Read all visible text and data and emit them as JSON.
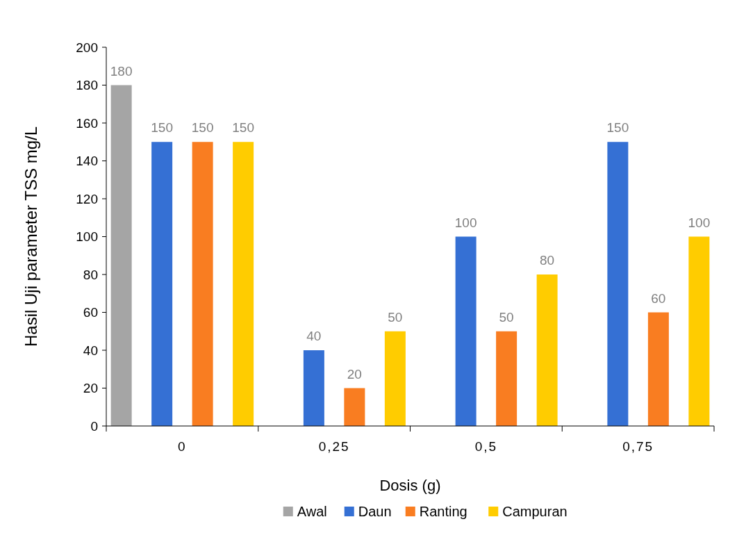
{
  "chart_data": {
    "type": "bar",
    "xlabel": "Dosis (g)",
    "ylabel": "Hasil Uji parameter TSS mg/L",
    "categories": [
      "0",
      "0,25",
      "0,5",
      "0,75"
    ],
    "series": [
      {
        "name": "Awal",
        "color": "#a5a5a5",
        "values": [
          180,
          null,
          null,
          null
        ]
      },
      {
        "name": "Daun",
        "color": "#3570d4",
        "values": [
          150,
          40,
          100,
          150
        ]
      },
      {
        "name": "Ranting",
        "color": "#f97d21",
        "values": [
          150,
          20,
          50,
          60
        ]
      },
      {
        "name": "Campuran",
        "color": "#ffcc00",
        "values": [
          150,
          50,
          80,
          100
        ]
      }
    ],
    "ylim": [
      0,
      200
    ],
    "yticks": [
      0,
      20,
      40,
      60,
      80,
      100,
      120,
      140,
      160,
      180,
      200
    ],
    "data_labels": true,
    "legend": "bottom",
    "grid": false
  }
}
